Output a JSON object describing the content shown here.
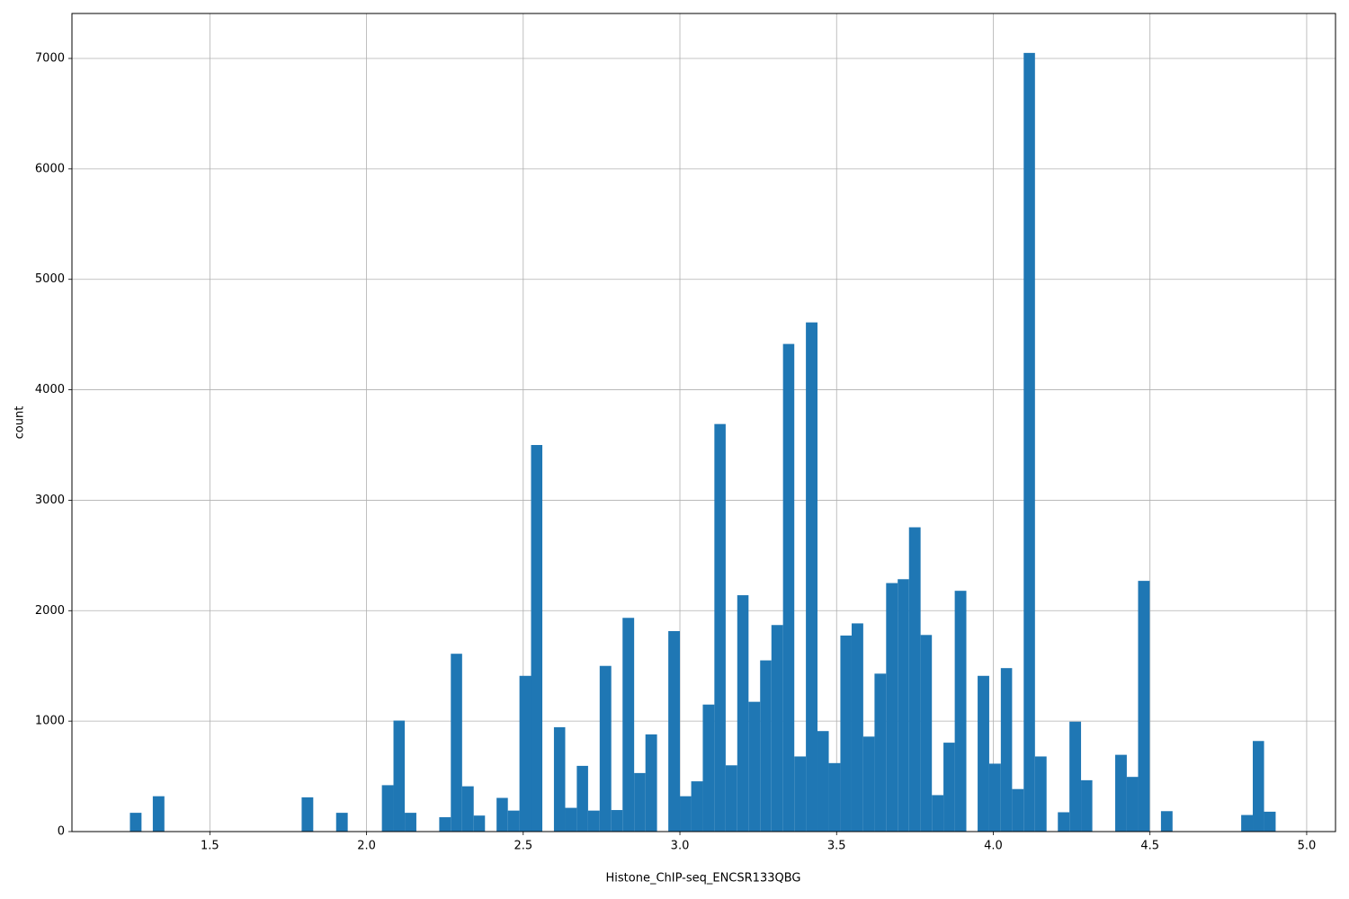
{
  "chart_data": {
    "type": "histogram",
    "x_label": "Histone_ChIP-seq_ENCSR133QBG",
    "y_label": "count",
    "color": "#1f77b4",
    "grid": true,
    "bins": [
      1.245,
      1.282,
      1.318,
      1.355,
      1.391,
      1.428,
      1.464,
      1.501,
      1.537,
      1.574,
      1.611,
      1.647,
      1.684,
      1.72,
      1.757,
      1.793,
      1.83,
      1.867,
      1.903,
      1.94,
      1.976,
      2.013,
      2.049,
      2.086,
      2.122,
      2.159,
      2.196,
      2.232,
      2.269,
      2.305,
      2.342,
      2.378,
      2.415,
      2.451,
      2.488,
      2.525,
      2.561,
      2.598,
      2.634,
      2.671,
      2.707,
      2.744,
      2.781,
      2.817,
      2.854,
      2.89,
      2.927,
      2.963,
      3.0,
      3.036,
      3.073,
      3.11,
      3.146,
      3.183,
      3.219,
      3.256,
      3.292,
      3.329,
      3.365,
      3.402,
      3.439,
      3.475,
      3.512,
      3.548,
      3.585,
      3.621,
      3.658,
      3.695,
      3.731,
      3.768,
      3.804,
      3.841,
      3.877,
      3.914,
      3.95,
      3.987,
      4.024,
      4.06,
      4.097,
      4.133,
      4.17,
      4.206,
      4.243,
      4.28,
      4.316,
      4.353,
      4.389,
      4.426,
      4.462,
      4.499,
      4.535,
      4.572,
      4.609,
      4.645,
      4.682,
      4.718,
      4.755,
      4.791,
      4.828,
      4.864,
      4.901
    ],
    "counts": [
      170,
      0,
      320,
      0,
      0,
      0,
      0,
      0,
      0,
      0,
      0,
      0,
      0,
      0,
      0,
      310,
      0,
      0,
      170,
      0,
      0,
      0,
      420,
      1005,
      170,
      0,
      0,
      130,
      1610,
      410,
      145,
      0,
      305,
      190,
      1410,
      3500,
      0,
      945,
      215,
      595,
      190,
      1500,
      195,
      1935,
      530,
      880,
      0,
      1815,
      320,
      455,
      1150,
      3690,
      600,
      2140,
      1175,
      1550,
      1870,
      4415,
      680,
      4610,
      910,
      620,
      1775,
      1885,
      860,
      1430,
      2250,
      2285,
      2755,
      1780,
      330,
      805,
      2180,
      0,
      1410,
      615,
      1480,
      385,
      7050,
      680,
      0,
      175,
      995,
      465,
      0,
      0,
      695,
      495,
      2270,
      0,
      185,
      0,
      0,
      0,
      0,
      0,
      0,
      150,
      820,
      180
    ],
    "xlim": [
      1.06,
      5.092
    ],
    "ylim": [
      0,
      7407
    ],
    "xticks": [
      1.5,
      {
        "value": 2.0,
        "label": "2.0"
      },
      2.5,
      {
        "value": 3.0,
        "label": "3.0"
      },
      3.5,
      {
        "value": 4.0,
        "label": "4.0"
      },
      4.5,
      {
        "value": 5.0,
        "label": "5.0"
      }
    ],
    "yticks": [
      0,
      1000,
      2000,
      3000,
      4000,
      5000,
      6000,
      7000
    ]
  }
}
